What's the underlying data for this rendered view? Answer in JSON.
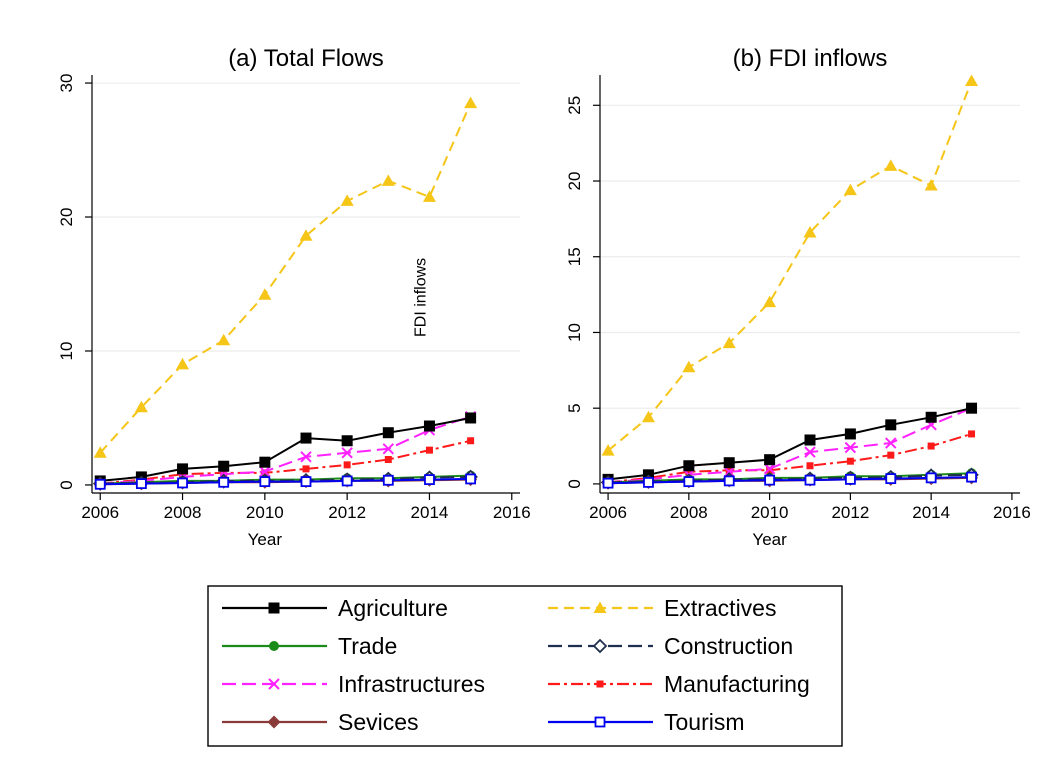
{
  "chart_data": [
    {
      "type": "line",
      "title": "(a) Total Flows",
      "xlabel": "Year",
      "ylabel": "",
      "xlim": [
        2005.8,
        2016.2
      ],
      "ylim": [
        -0.6,
        30.6
      ],
      "xticks": [
        2006,
        2008,
        2010,
        2012,
        2014,
        2016
      ],
      "yticks": [
        0,
        10,
        20,
        30
      ],
      "grid": "horizontal",
      "annotation": {
        "text": "FDI inflows",
        "x": 2013.9,
        "y": 14,
        "rotation": -90
      },
      "x": [
        2006,
        2007,
        2008,
        2009,
        2010,
        2011,
        2012,
        2013,
        2014,
        2015
      ],
      "series": [
        {
          "name": "Agriculture",
          "values": [
            0.3,
            0.6,
            1.2,
            1.4,
            1.7,
            3.5,
            3.3,
            3.9,
            4.4,
            5.0
          ]
        },
        {
          "name": "Extractives",
          "values": [
            2.4,
            5.8,
            9.0,
            10.8,
            14.2,
            18.6,
            21.2,
            22.7,
            21.5,
            28.5
          ]
        },
        {
          "name": "Trade",
          "values": [
            0.1,
            0.2,
            0.3,
            0.3,
            0.4,
            0.4,
            0.5,
            0.5,
            0.6,
            0.7
          ]
        },
        {
          "name": "Construction",
          "values": [
            0.1,
            0.15,
            0.2,
            0.3,
            0.3,
            0.35,
            0.4,
            0.45,
            0.55,
            0.6
          ]
        },
        {
          "name": "Infrastructures",
          "values": [
            0.1,
            0.3,
            0.6,
            0.8,
            1.0,
            2.1,
            2.4,
            2.7,
            4.1,
            5.1
          ]
        },
        {
          "name": "Manufacturing",
          "values": [
            0.1,
            0.4,
            0.8,
            0.9,
            0.9,
            1.2,
            1.5,
            1.9,
            2.6,
            3.3
          ]
        },
        {
          "name": "Sevices",
          "values": [
            0.05,
            0.1,
            0.15,
            0.2,
            0.2,
            0.25,
            0.3,
            0.3,
            0.35,
            0.4
          ]
        },
        {
          "name": "Tourism",
          "values": [
            0.05,
            0.1,
            0.15,
            0.2,
            0.25,
            0.25,
            0.3,
            0.35,
            0.4,
            0.45
          ]
        }
      ]
    },
    {
      "type": "line",
      "title": "(b) FDI inflows",
      "xlabel": "Year",
      "ylabel": "",
      "xlim": [
        2005.8,
        2016.2
      ],
      "ylim": [
        -0.6,
        27.0
      ],
      "xticks": [
        2006,
        2008,
        2010,
        2012,
        2014,
        2016
      ],
      "yticks": [
        0,
        5,
        10,
        15,
        20,
        25
      ],
      "grid": "horizontal",
      "x": [
        2006,
        2007,
        2008,
        2009,
        2010,
        2011,
        2012,
        2013,
        2014,
        2015
      ],
      "series": [
        {
          "name": "Agriculture",
          "values": [
            0.3,
            0.6,
            1.2,
            1.4,
            1.6,
            2.9,
            3.3,
            3.9,
            4.4,
            5.0
          ]
        },
        {
          "name": "Extractives",
          "values": [
            2.2,
            4.4,
            7.7,
            9.3,
            12.0,
            16.6,
            19.4,
            21.0,
            19.7,
            26.6
          ]
        },
        {
          "name": "Trade",
          "values": [
            0.1,
            0.2,
            0.3,
            0.3,
            0.4,
            0.4,
            0.5,
            0.5,
            0.6,
            0.7
          ]
        },
        {
          "name": "Construction",
          "values": [
            0.1,
            0.15,
            0.2,
            0.3,
            0.3,
            0.35,
            0.4,
            0.45,
            0.55,
            0.6
          ]
        },
        {
          "name": "Infrastructures",
          "values": [
            0.1,
            0.3,
            0.6,
            0.8,
            1.0,
            2.1,
            2.4,
            2.7,
            3.9,
            5.0
          ]
        },
        {
          "name": "Manufacturing",
          "values": [
            0.1,
            0.4,
            0.8,
            0.9,
            0.9,
            1.2,
            1.5,
            1.9,
            2.5,
            3.3
          ]
        },
        {
          "name": "Sevices",
          "values": [
            0.05,
            0.1,
            0.15,
            0.2,
            0.2,
            0.25,
            0.3,
            0.3,
            0.35,
            0.4
          ]
        },
        {
          "name": "Tourism",
          "values": [
            0.05,
            0.1,
            0.15,
            0.2,
            0.25,
            0.25,
            0.3,
            0.35,
            0.4,
            0.45
          ]
        }
      ]
    }
  ],
  "legend": {
    "placement": "bottom-center",
    "items": [
      {
        "name": "Agriculture",
        "color": "#000000",
        "dash": "solid",
        "marker": "square-filled"
      },
      {
        "name": "Extractives",
        "color": "#f5c518",
        "dash": "dashed",
        "marker": "triangle-filled"
      },
      {
        "name": "Trade",
        "color": "#1a8a1a",
        "dash": "solid",
        "marker": "circle-filled"
      },
      {
        "name": "Construction",
        "color": "#1f2f4f",
        "dash": "longdash",
        "marker": "diamond-hollow"
      },
      {
        "name": "Infrastructures",
        "color": "#ff22ff",
        "dash": "longdash",
        "marker": "x"
      },
      {
        "name": "Manufacturing",
        "color": "#ff1a1a",
        "dash": "dashdot",
        "marker": "square-filled-small"
      },
      {
        "name": "Sevices",
        "color": "#8b3a3a",
        "dash": "solid",
        "marker": "diamond-filled"
      },
      {
        "name": "Tourism",
        "color": "#0000ee",
        "dash": "solid",
        "marker": "square-hollow"
      }
    ]
  }
}
